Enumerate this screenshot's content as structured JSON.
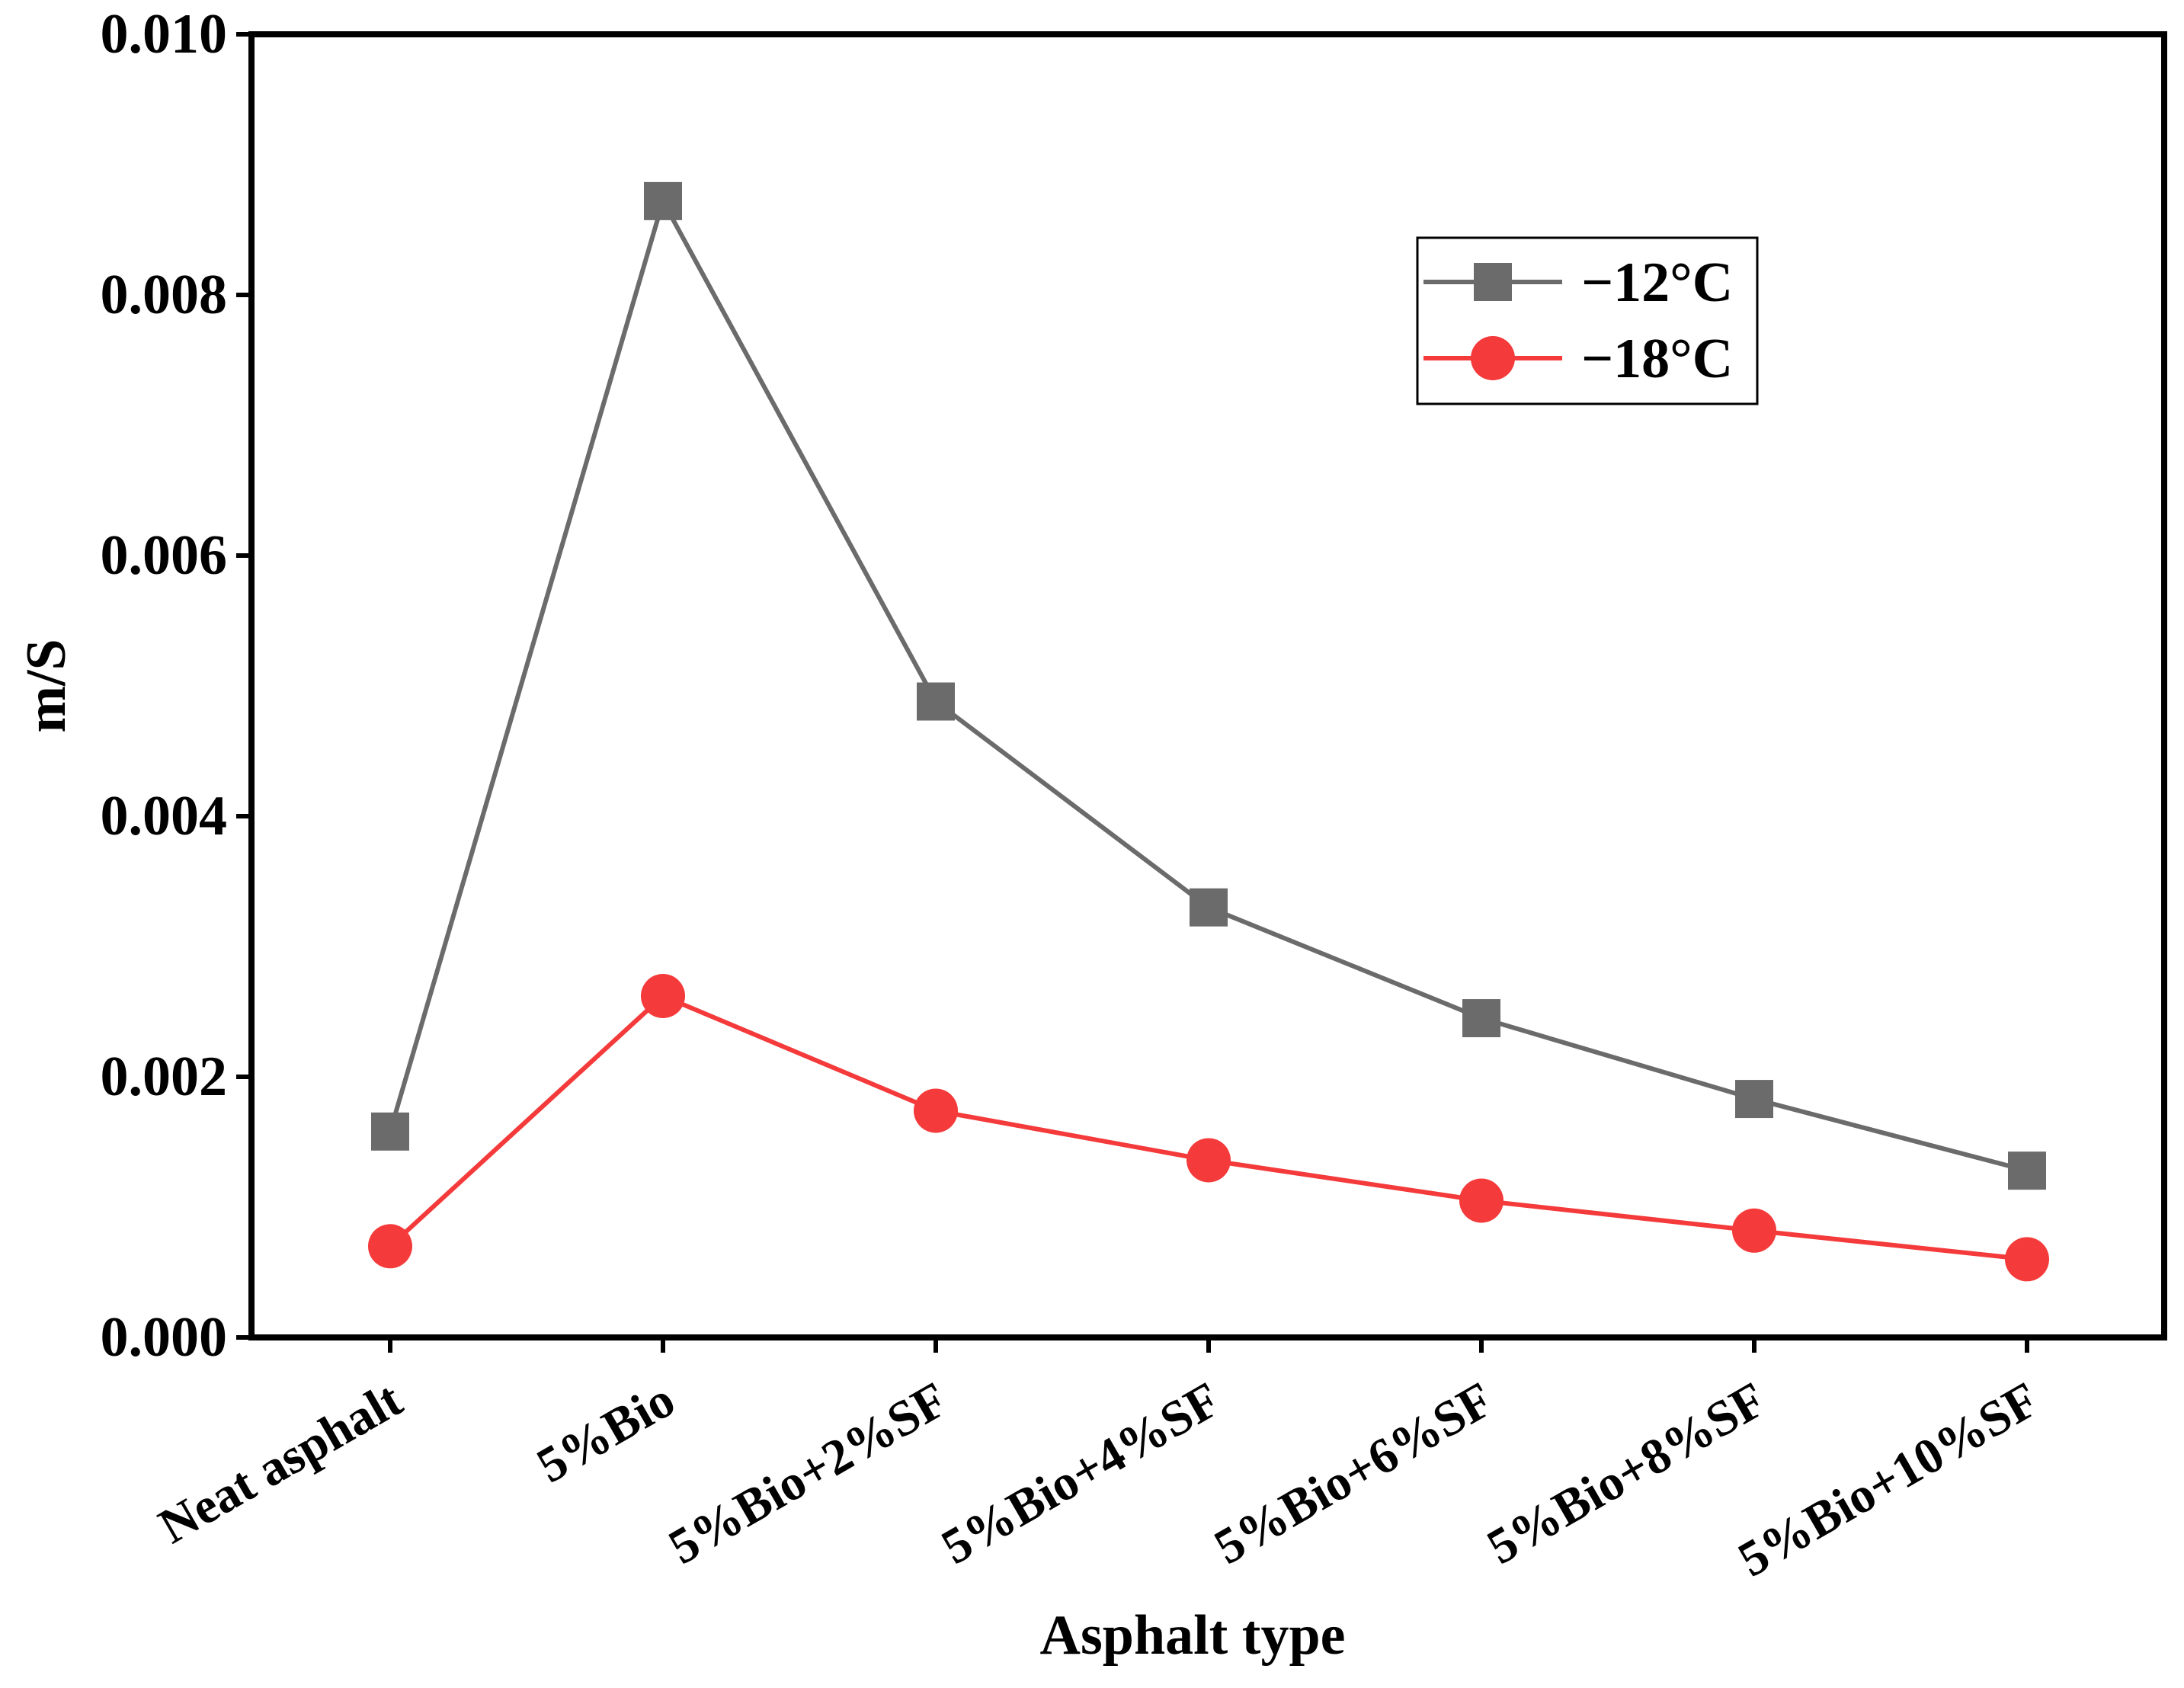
{
  "chart_data": {
    "type": "line",
    "title": "",
    "xlabel": "Asphalt type",
    "ylabel": "m/S",
    "ylim": [
      0,
      0.01
    ],
    "yticks": [
      "0.000",
      "0.002",
      "0.004",
      "0.006",
      "0.008",
      "0.010"
    ],
    "ytick_values": [
      0,
      0.002,
      0.004,
      0.006,
      0.008,
      0.01
    ],
    "categories": [
      "Neat asphalt",
      "5%Bio",
      "5%Bio+2%SF",
      "5%Bio+4%SF",
      "5%Bio+6%SF",
      "5%Bio+8%SF",
      "5%Bio+10%SF"
    ],
    "grid": false,
    "legend_position": "top-right",
    "series": [
      {
        "name": "−12°C",
        "color": "#6b6b6b",
        "marker": "square",
        "values": [
          0.00158,
          0.00872,
          0.00488,
          0.0033,
          0.00245,
          0.00183,
          0.00128
        ]
      },
      {
        "name": "−18°C",
        "color": "#f43a3a",
        "marker": "circle",
        "values": [
          0.0007,
          0.00262,
          0.00174,
          0.00136,
          0.00105,
          0.00082,
          0.0006
        ]
      }
    ]
  }
}
